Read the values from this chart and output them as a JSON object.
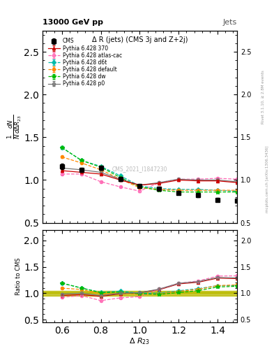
{
  "title_top": "13000 GeV pp",
  "title_right": "Jets",
  "plot_title": "Δ R (jets) (CMS 3j and Z+2j)",
  "xlabel": "Δ R_{23}",
  "watermark": "CMS_2021_I1847230",
  "right_label": "Rivet 3.1.10, ≥ 2.8M events",
  "right_label2": "mcplots.cern.ch [arXiv:1306.3436]",
  "xlim": [
    0.5,
    1.5
  ],
  "ylim_main": [
    0.5,
    2.75
  ],
  "ylim_ratio": [
    0.45,
    2.2
  ],
  "yticks_main": [
    0.5,
    1.0,
    1.5,
    2.0,
    2.5
  ],
  "yticks_ratio": [
    0.5,
    1.0,
    1.5,
    2.0
  ],
  "x_data": [
    0.6,
    0.7,
    0.8,
    0.9,
    1.0,
    1.1,
    1.2,
    1.3,
    1.4,
    1.5
  ],
  "cms_y": [
    1.16,
    1.12,
    1.14,
    1.01,
    0.93,
    0.9,
    0.85,
    0.82,
    0.77,
    0.76
  ],
  "cms_yerr": [
    0.03,
    0.02,
    0.02,
    0.02,
    0.02,
    0.02,
    0.02,
    0.02,
    0.02,
    0.02
  ],
  "py370_y": [
    1.11,
    1.09,
    1.07,
    1.0,
    0.94,
    0.96,
    1.0,
    0.99,
    0.99,
    0.97
  ],
  "py370_yerr": [
    0.01,
    0.01,
    0.01,
    0.01,
    0.01,
    0.01,
    0.01,
    0.01,
    0.01,
    0.01
  ],
  "pyatlas_y": [
    1.07,
    1.07,
    0.98,
    0.92,
    0.87,
    0.97,
    1.01,
    1.01,
    1.02,
    1.01
  ],
  "pyatlas_yerr": [
    0.01,
    0.01,
    0.01,
    0.01,
    0.01,
    0.01,
    0.01,
    0.01,
    0.01,
    0.01
  ],
  "pyd6t_y": [
    1.38,
    1.23,
    1.16,
    1.05,
    0.93,
    0.9,
    0.89,
    0.89,
    0.88,
    0.87
  ],
  "pyd6t_yerr": [
    0.02,
    0.01,
    0.01,
    0.01,
    0.01,
    0.01,
    0.01,
    0.01,
    0.01,
    0.01
  ],
  "pydefault_y": [
    1.27,
    1.2,
    1.12,
    1.01,
    0.91,
    0.89,
    0.88,
    0.88,
    0.88,
    0.88
  ],
  "pydefault_yerr": [
    0.01,
    0.01,
    0.01,
    0.01,
    0.01,
    0.01,
    0.01,
    0.01,
    0.01,
    0.01
  ],
  "pydw_y": [
    1.38,
    1.23,
    1.15,
    1.03,
    0.92,
    0.88,
    0.86,
    0.86,
    0.86,
    0.86
  ],
  "pydw_yerr": [
    0.02,
    0.01,
    0.01,
    0.01,
    0.01,
    0.01,
    0.01,
    0.01,
    0.01,
    0.01
  ],
  "pyp0_y": [
    1.14,
    1.12,
    1.09,
    1.01,
    0.94,
    0.97,
    1.01,
    1.0,
    1.0,
    0.98
  ],
  "pyp0_yerr": [
    0.01,
    0.01,
    0.01,
    0.01,
    0.01,
    0.01,
    0.01,
    0.01,
    0.01,
    0.01
  ],
  "color_cms": "#000000",
  "color_370": "#cc0000",
  "color_atlas": "#ff69b4",
  "color_d6t": "#00bbaa",
  "color_default": "#ff8800",
  "color_dw": "#00bb00",
  "color_p0": "#777777",
  "color_ratio_band": "#bbbb00"
}
